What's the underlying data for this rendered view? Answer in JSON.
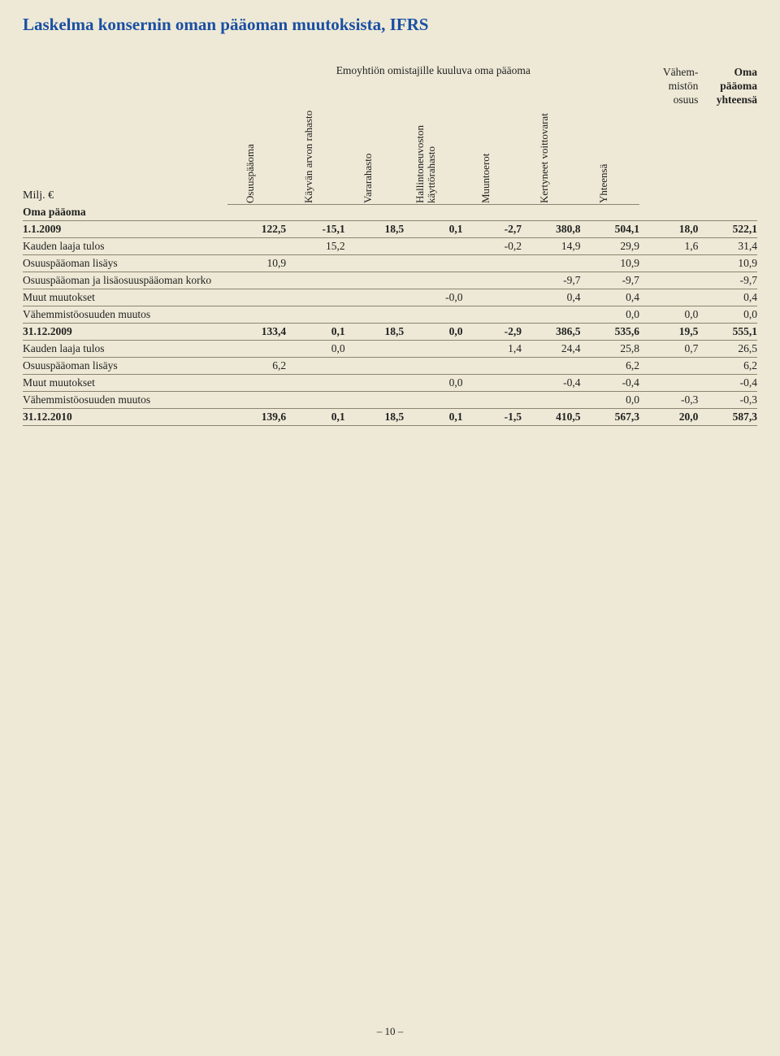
{
  "title": "Laskelma konsernin oman pääoman muutoksista, IFRS",
  "unit_label": "Milj. €",
  "page_marker": "– 10 –",
  "colors": {
    "background": "#eee9d6",
    "title": "#1a4fa3",
    "rule": "#8a8570",
    "text": "#222222"
  },
  "headers": {
    "group_caption": "Emoyhtiön omistajille kuuluva oma pääoma",
    "rotated": [
      "Osuuspääoma",
      "Käyvän arvon rahasto",
      "Vararahasto",
      "Hallintoneuvoston käyttörahasto",
      "Muuntoerot",
      "Kertyneet voittovarat",
      "Yhteensä"
    ],
    "stack1": [
      "Vähem-",
      "mistön",
      "osuus"
    ],
    "stack2": [
      "Oma",
      "pääoma",
      "yhteensä"
    ]
  },
  "rows": [
    {
      "label": "Oma pääoma",
      "bold": true,
      "v": [
        "",
        "",
        "",
        "",
        "",
        "",
        "",
        "",
        ""
      ]
    },
    {
      "label": "1.1.2009",
      "bold": true,
      "v": [
        "122,5",
        "-15,1",
        "18,5",
        "0,1",
        "-2,7",
        "380,8",
        "504,1",
        "18,0",
        "522,1"
      ]
    },
    {
      "label": "Kauden laaja tulos",
      "v": [
        "",
        "15,2",
        "",
        "",
        "-0,2",
        "14,9",
        "29,9",
        "1,6",
        "31,4"
      ]
    },
    {
      "label": "Osuuspääoman lisäys",
      "v": [
        "10,9",
        "",
        "",
        "",
        "",
        "",
        "10,9",
        "",
        "10,9"
      ]
    },
    {
      "label": "Osuuspääoman ja lisäosuuspääoman korko",
      "v": [
        "",
        "",
        "",
        "",
        "",
        "-9,7",
        "-9,7",
        "",
        "-9,7"
      ]
    },
    {
      "label": "Muut muutokset",
      "v": [
        "",
        "",
        "",
        "-0,0",
        "",
        "0,4",
        "0,4",
        "",
        "0,4"
      ]
    },
    {
      "label": "Vähemmistöosuuden muutos",
      "v": [
        "",
        "",
        "",
        "",
        "",
        "",
        "0,0",
        "0,0",
        "0,0"
      ]
    },
    {
      "label": "31.12.2009",
      "bold": true,
      "v": [
        "133,4",
        "0,1",
        "18,5",
        "0,0",
        "-2,9",
        "386,5",
        "535,6",
        "19,5",
        "555,1"
      ]
    },
    {
      "label": "Kauden laaja tulos",
      "v": [
        "",
        "0,0",
        "",
        "",
        "1,4",
        "24,4",
        "25,8",
        "0,7",
        "26,5"
      ]
    },
    {
      "label": "Osuuspääoman lisäys",
      "v": [
        "6,2",
        "",
        "",
        "",
        "",
        "",
        "6,2",
        "",
        "6,2"
      ]
    },
    {
      "label": "Muut muutokset",
      "v": [
        "",
        "",
        "",
        "0,0",
        "",
        "-0,4",
        "-0,4",
        "",
        "-0,4"
      ]
    },
    {
      "label": "Vähemmistöosuuden muutos",
      "v": [
        "",
        "",
        "",
        "",
        "",
        "",
        "0,0",
        "-0,3",
        "-0,3"
      ]
    },
    {
      "label": "31.12.2010",
      "bold": true,
      "v": [
        "139,6",
        "0,1",
        "18,5",
        "0,1",
        "-1,5",
        "410,5",
        "567,3",
        "20,0",
        "587,3"
      ]
    }
  ]
}
